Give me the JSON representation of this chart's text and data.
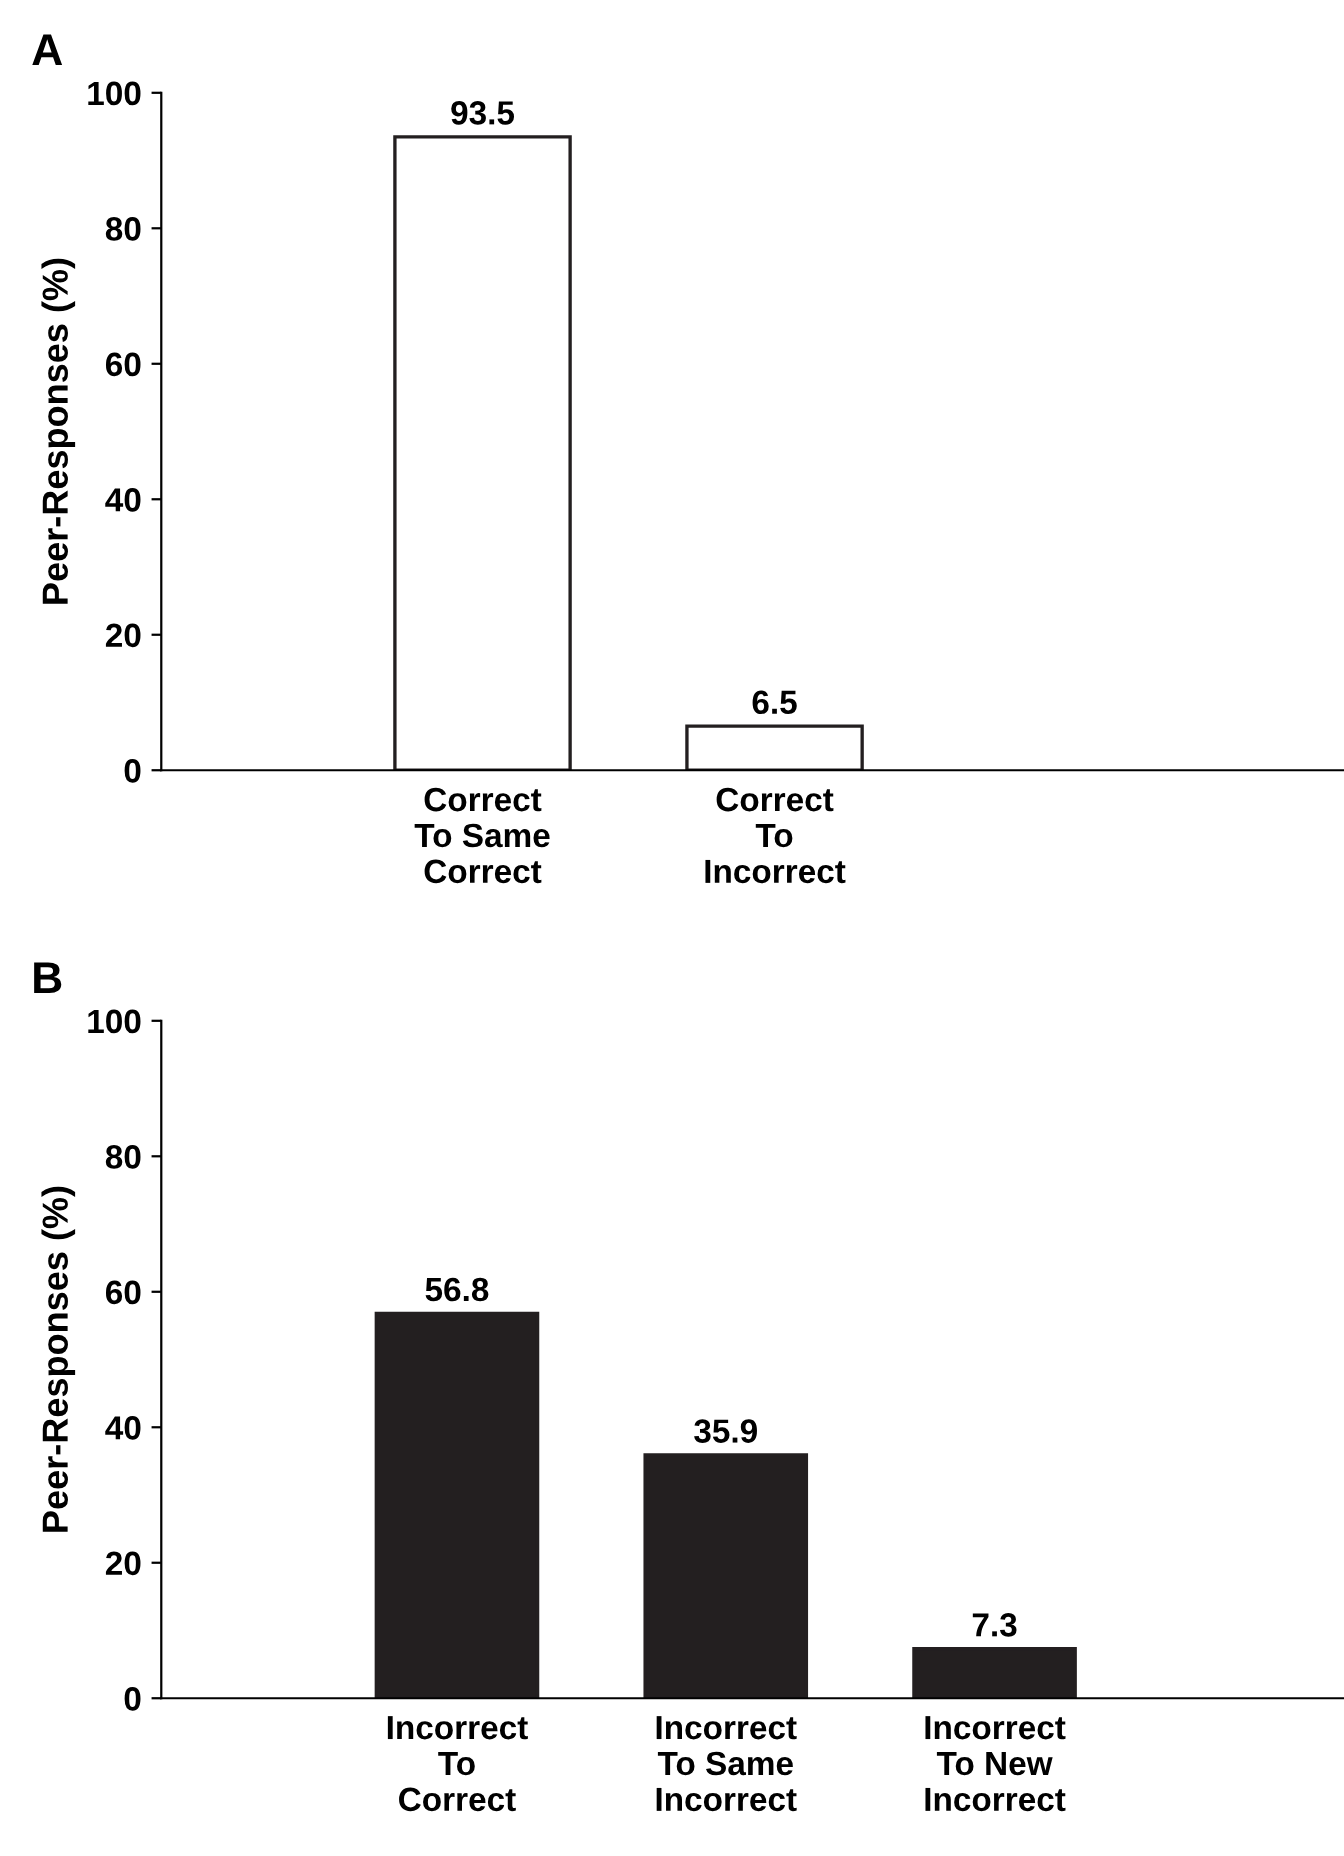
{
  "chart_data": [
    {
      "type": "bar",
      "title": "A",
      "ylabel": "Peer-Responses (%)",
      "categories": [
        "Correct\nTo Same\nCorrect",
        "Correct\nTo\nIncorrect"
      ],
      "values": [
        93.5,
        6.5
      ],
      "color": "#ffffff",
      "ylim": [
        0,
        100
      ],
      "yticks": [
        0,
        20,
        40,
        60,
        80,
        100
      ],
      "data_labels": true,
      "grid": false,
      "legend": false
    },
    {
      "type": "bar",
      "title": "B",
      "ylabel": "Peer-Responses (%)",
      "categories": [
        "Incorrect\nTo\nCorrect",
        "Incorrect\nTo Same\nIncorrect",
        "Incorrect\nTo New\nIncorrect"
      ],
      "values": [
        56.8,
        35.9,
        7.3
      ],
      "color": "#231f20",
      "ylim": [
        0,
        100
      ],
      "yticks": [
        0,
        20,
        40,
        60,
        80,
        100
      ],
      "data_labels": true,
      "grid": false,
      "legend": false
    }
  ]
}
